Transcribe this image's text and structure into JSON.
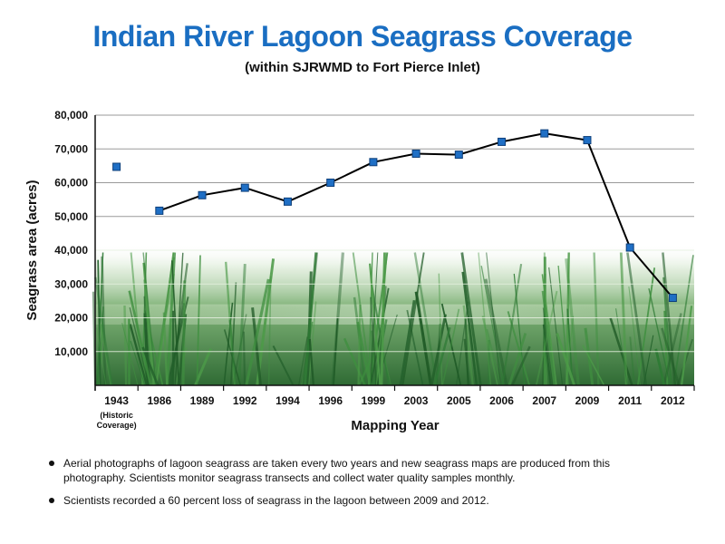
{
  "chart_data": {
    "type": "line",
    "title": "Indian River Lagoon Seagrass Coverage",
    "subtitle": "(within SJRWMD to Fort Pierce Inlet)",
    "xlabel": "Mapping Year",
    "ylabel": "Seagrass area (acres)",
    "categories": [
      "1943",
      "1986",
      "1989",
      "1992",
      "1994",
      "1996",
      "1999",
      "2003",
      "2005",
      "2006",
      "2007",
      "2009",
      "2011",
      "2012"
    ],
    "category_sublabels": {
      "1943": [
        "(Historic",
        "Coverage)"
      ]
    },
    "series": [
      {
        "values": [
          64700,
          51700,
          56300,
          58500,
          54400,
          60000,
          66100,
          68600,
          68300,
          72100,
          74600,
          72600,
          40800,
          25900
        ],
        "connected_from_index": 1
      }
    ],
    "ylim": [
      0,
      80000
    ],
    "yticks": [
      0,
      10000,
      20000,
      30000,
      40000,
      50000,
      60000,
      70000,
      80000
    ],
    "ytick_labels": [
      "",
      "10,000",
      "20,000",
      "30,000",
      "40,000",
      "50,000",
      "60,000",
      "70,000",
      "80,000"
    ],
    "grid": true,
    "background": "seagrass photograph in lower portion of plot area",
    "marker_color": "#1f6fc5",
    "line_color": "#000000"
  },
  "notes": [
    "Aerial photographs of lagoon seagrass are taken every two years and new seagrass maps are produced from this photography. Scientists monitor seagrass transects and collect water quality samples monthly.",
    "Scientists recorded a 60 percent loss of seagrass in the lagoon between 2009 and 2012."
  ],
  "colors": {
    "title": "#1a6ec2",
    "marker": "#1f6fc5"
  }
}
